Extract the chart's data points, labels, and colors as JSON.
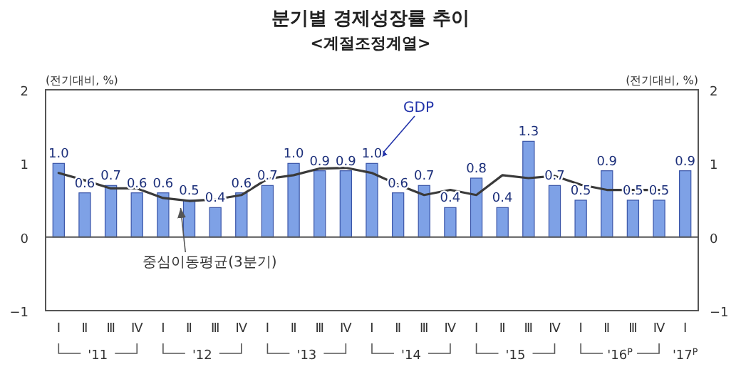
{
  "chart_data": {
    "type": "bar",
    "title": "분기별 경제성장률 추이",
    "subtitle": "<계절조정계열>",
    "ylabel": "(전기대비, %)",
    "y2label": "(전기대비, %)",
    "categories": [
      "Ⅰ",
      "Ⅱ",
      "Ⅲ",
      "Ⅳ",
      "Ⅰ",
      "Ⅱ",
      "Ⅲ",
      "Ⅳ",
      "Ⅰ",
      "Ⅱ",
      "Ⅲ",
      "Ⅳ",
      "Ⅰ",
      "Ⅱ",
      "Ⅲ",
      "Ⅳ",
      "Ⅰ",
      "Ⅱ",
      "Ⅲ",
      "Ⅳ",
      "Ⅰ",
      "Ⅱ",
      "Ⅲ",
      "Ⅳ",
      "Ⅰ"
    ],
    "annotations": [
      "'11",
      "'12",
      "'13",
      "'14",
      "'15",
      "'16$^{P}$",
      "'17$^{P}$"
    ],
    "series": [
      {
        "name": "GDP",
        "color": "#7ea1e6",
        "values": [
          1.0,
          0.6,
          0.7,
          0.6,
          0.6,
          0.5,
          0.4,
          0.6,
          0.7,
          1.0,
          0.9,
          0.9,
          1.0,
          0.6,
          0.7,
          0.4,
          0.8,
          0.4,
          1.3,
          0.7,
          0.5,
          0.9,
          0.5,
          0.5,
          0.9
        ],
        "value_labels": [
          "1.0",
          "0.6",
          "0.7",
          "0.6",
          "0.6",
          "0.5",
          "0.4",
          "0.6",
          "0.7",
          "1.0",
          "0.9",
          "0.9",
          "1.0",
          "0.6",
          "0.7",
          "0.4",
          "0.8",
          "0.4",
          "1.3",
          "0.7",
          "0.5",
          "0.9",
          "0.5",
          "0.5",
          "0.9"
        ]
      },
      {
        "name": "중심이동평균(3분기)",
        "type": "line",
        "color": "#3a3a3a",
        "values": [
          0.87,
          0.77,
          0.66,
          0.66,
          0.53,
          0.49,
          0.51,
          0.57,
          0.79,
          0.84,
          0.93,
          0.94,
          0.87,
          0.71,
          0.57,
          0.64,
          0.57,
          0.84,
          0.8,
          0.83,
          0.71,
          0.64,
          0.64,
          0.64,
          null
        ]
      }
    ],
    "ylim": [
      -1,
      2
    ],
    "yticks": [
      -1,
      0,
      1,
      2
    ],
    "y2lim": [
      -1,
      2
    ],
    "y2ticks": [
      -1,
      0,
      1,
      2
    ]
  }
}
